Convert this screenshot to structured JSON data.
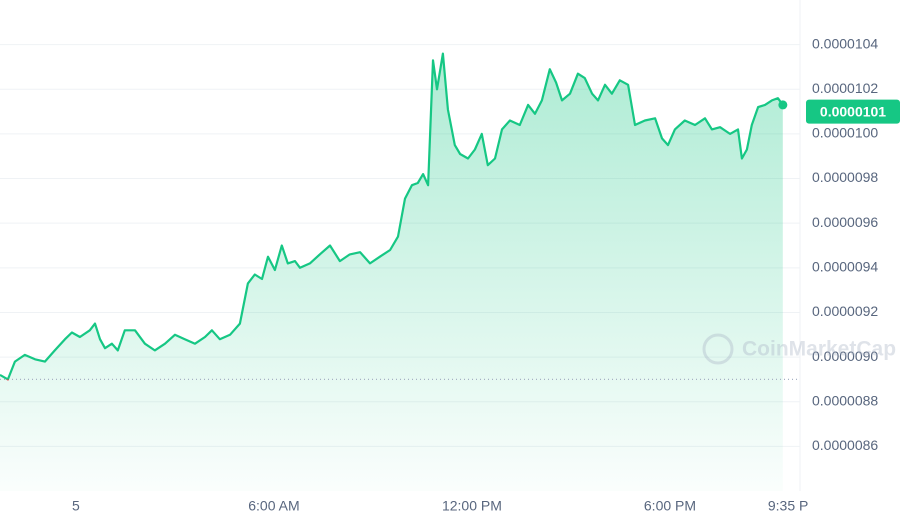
{
  "chart_data": {
    "type": "line",
    "watermark": "CoinMarketCap",
    "x": [
      -2.3,
      -2.06,
      -1.85,
      -1.55,
      -1.24,
      -0.94,
      -0.64,
      -0.33,
      -0.12,
      0.12,
      0.42,
      0.58,
      0.73,
      0.88,
      1.09,
      1.27,
      1.48,
      1.79,
      2.09,
      2.39,
      2.7,
      3.0,
      3.3,
      3.61,
      3.91,
      4.12,
      4.36,
      4.67,
      4.97,
      5.21,
      5.42,
      5.64,
      5.82,
      6.03,
      6.24,
      6.42,
      6.64,
      6.79,
      7.09,
      7.39,
      7.7,
      8.0,
      8.3,
      8.61,
      8.91,
      9.21,
      9.52,
      9.76,
      9.97,
      10.18,
      10.36,
      10.52,
      10.67,
      10.82,
      10.94,
      11.12,
      11.27,
      11.48,
      11.64,
      11.88,
      12.09,
      12.3,
      12.48,
      12.7,
      12.91,
      13.15,
      13.45,
      13.7,
      13.91,
      14.12,
      14.36,
      14.55,
      14.73,
      14.97,
      15.21,
      15.42,
      15.64,
      15.82,
      16.03,
      16.24,
      16.48,
      16.73,
      16.94,
      17.24,
      17.55,
      17.76,
      17.94,
      18.15,
      18.45,
      18.76,
      19.06,
      19.27,
      19.52,
      19.82,
      20.06,
      20.18,
      20.33,
      20.48,
      20.67,
      20.88,
      21.09,
      21.27,
      21.42
    ],
    "series": [
      {
        "color": "#16c784",
        "below_color": "#ea3943",
        "values": [
          8.92e-06,
          8.9e-06,
          8.98e-06,
          9.01e-06,
          8.99e-06,
          8.98e-06,
          9.03e-06,
          9.08e-06,
          9.11e-06,
          9.09e-06,
          9.12e-06,
          9.15e-06,
          9.08e-06,
          9.04e-06,
          9.06e-06,
          9.03e-06,
          9.12e-06,
          9.12e-06,
          9.06e-06,
          9.03e-06,
          9.06e-06,
          9.1e-06,
          9.08e-06,
          9.06e-06,
          9.09e-06,
          9.12e-06,
          9.08e-06,
          9.1e-06,
          9.15e-06,
          9.33e-06,
          9.37e-06,
          9.35e-06,
          9.45e-06,
          9.39e-06,
          9.5e-06,
          9.42e-06,
          9.43e-06,
          9.4e-06,
          9.42e-06,
          9.46e-06,
          9.5e-06,
          9.43e-06,
          9.46e-06,
          9.47e-06,
          9.42e-06,
          9.45e-06,
          9.48e-06,
          9.54e-06,
          9.71e-06,
          9.77e-06,
          9.78e-06,
          9.82e-06,
          9.77e-06,
          1.033e-05,
          1.02e-05,
          1.036e-05,
          1.011e-05,
          9.95e-06,
          9.91e-06,
          9.89e-06,
          9.93e-06,
          1e-05,
          9.86e-06,
          9.89e-06,
          1.002e-05,
          1.006e-05,
          1.004e-05,
          1.013e-05,
          1.009e-05,
          1.015e-05,
          1.029e-05,
          1.023e-05,
          1.015e-05,
          1.018e-05,
          1.027e-05,
          1.025e-05,
          1.018e-05,
          1.015e-05,
          1.022e-05,
          1.018e-05,
          1.024e-05,
          1.022e-05,
          1.004e-05,
          1.006e-05,
          1.007e-05,
          9.98e-06,
          9.95e-06,
          1.002e-05,
          1.006e-05,
          1.004e-05,
          1.007e-05,
          1.002e-05,
          1.003e-05,
          1e-05,
          1.002e-05,
          9.89e-06,
          9.93e-06,
          1.004e-05,
          1.012e-05,
          1.013e-05,
          1.015e-05,
          1.016e-05,
          1.013e-05
        ]
      }
    ],
    "current_price": 1.01e-05,
    "reference_line": 8.9e-06,
    "xlim": [
      -2.3,
      21.94
    ],
    "xticks": [
      {
        "value": 0,
        "label": "5"
      },
      {
        "value": 6,
        "label": "6:00 AM"
      },
      {
        "value": 12,
        "label": "12:00 PM"
      },
      {
        "value": 18,
        "label": "6:00 PM"
      },
      {
        "value": 21.58,
        "label": "9:35 P"
      }
    ],
    "ylim": [
      8.4e-06,
      1.06e-05
    ],
    "yticks": [
      8.6e-06,
      8.8e-06,
      {
        "value": 9e-06,
        "label": "0.0000090"
      },
      9.2e-06,
      9.4e-06,
      9.6e-06,
      9.8e-06,
      {
        "value": 1e-05,
        "label": "0.0000100"
      },
      1.02e-05,
      1.04e-05
    ],
    "grid": true
  }
}
